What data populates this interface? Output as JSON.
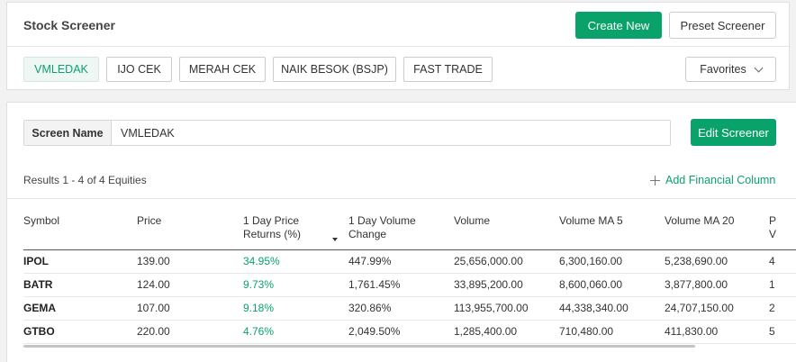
{
  "header": {
    "title": "Stock Screener",
    "create_new_label": "Create New",
    "preset_label": "Preset Screener"
  },
  "tabs": [
    {
      "label": "VMLEDAK",
      "active": true
    },
    {
      "label": "IJO CEK",
      "active": false
    },
    {
      "label": "MERAH CEK",
      "active": false
    },
    {
      "label": "NAIK BESOK (BSJP)",
      "active": false
    },
    {
      "label": "FAST TRADE",
      "active": false
    }
  ],
  "favorites_label": "Favorites",
  "screen": {
    "name_label": "Screen Name",
    "name_value": "VMLEDAK",
    "edit_label": "Edit Screener"
  },
  "results": {
    "summary": "Results 1 - 4 of 4 Equities",
    "add_column_label": "Add Financial Column"
  },
  "table": {
    "headers": [
      "Symbol",
      "Price",
      "1 Day Price Returns (%)",
      "1 Day Volume Change",
      "Volume",
      "Volume MA 5",
      "Volume MA 20",
      "P V"
    ],
    "sorted_column": 2,
    "rows": [
      [
        "IPOL",
        "139.00",
        "34.95%",
        "447.99%",
        "25,656,000.00",
        "6,300,160.00",
        "5,238,690.00",
        "4"
      ],
      [
        "BATR",
        "124.00",
        "9.73%",
        "1,761.45%",
        "33,895,200.00",
        "8,600,060.00",
        "3,877,800.00",
        "1"
      ],
      [
        "GEMA",
        "107.00",
        "9.18%",
        "320.86%",
        "113,955,700.00",
        "44,338,340.00",
        "24,707,150.00",
        "2"
      ],
      [
        "GTBO",
        "220.00",
        "4.76%",
        "2,049.50%",
        "1,285,400.00",
        "710,480.00",
        "411,830.00",
        "5"
      ]
    ]
  },
  "colors": {
    "accent": "#0aa26b",
    "positive": "#0aa26b"
  }
}
